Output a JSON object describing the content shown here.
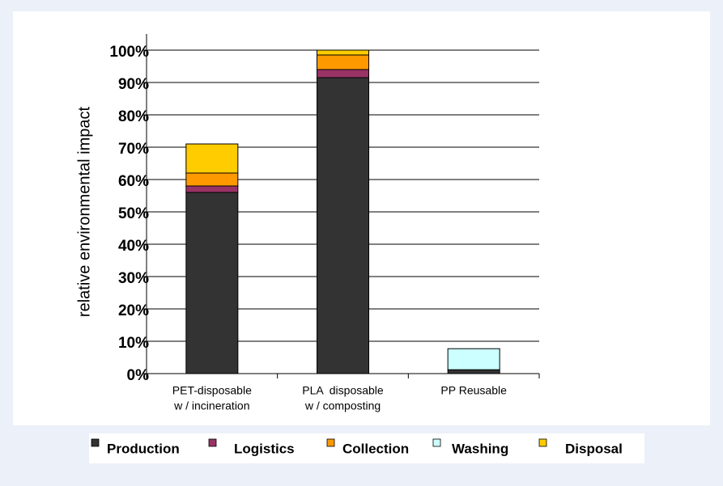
{
  "chart_data": {
    "type": "stacked-bar",
    "y_label": "relative environmental impact",
    "categories": [
      [
        "PET-disposable",
        "w / incineration"
      ],
      [
        "PLA  disposable",
        "w / composting"
      ],
      [
        "PP Reusable"
      ]
    ],
    "series": [
      {
        "name": "Production",
        "color": "#333333",
        "values": [
          56,
          91.5,
          1.2
        ]
      },
      {
        "name": "Logistics",
        "color": "#993366",
        "values": [
          2,
          2.5,
          0
        ]
      },
      {
        "name": "Collection",
        "color": "#ff9900",
        "values": [
          4,
          4.5,
          0
        ]
      },
      {
        "name": "Washing",
        "color": "#ccffff",
        "values": [
          0,
          0,
          6.5
        ]
      },
      {
        "name": "Disposal",
        "color": "#ffcc00",
        "values": [
          9,
          1.5,
          0
        ]
      }
    ],
    "ylim": [
      0,
      105
    ],
    "yticks": [
      {
        "value": 0,
        "label": "0%"
      },
      {
        "value": 10,
        "label": "10%"
      },
      {
        "value": 20,
        "label": "20%"
      },
      {
        "value": 30,
        "label": "30%"
      },
      {
        "value": 40,
        "label": "40%"
      },
      {
        "value": 50,
        "label": "50%"
      },
      {
        "value": 60,
        "label": "60%"
      },
      {
        "value": 70,
        "label": "70%"
      },
      {
        "value": 80,
        "label": "80%"
      },
      {
        "value": 90,
        "label": "90%"
      },
      {
        "value": 100,
        "label": "100%"
      }
    ],
    "grid": true
  }
}
